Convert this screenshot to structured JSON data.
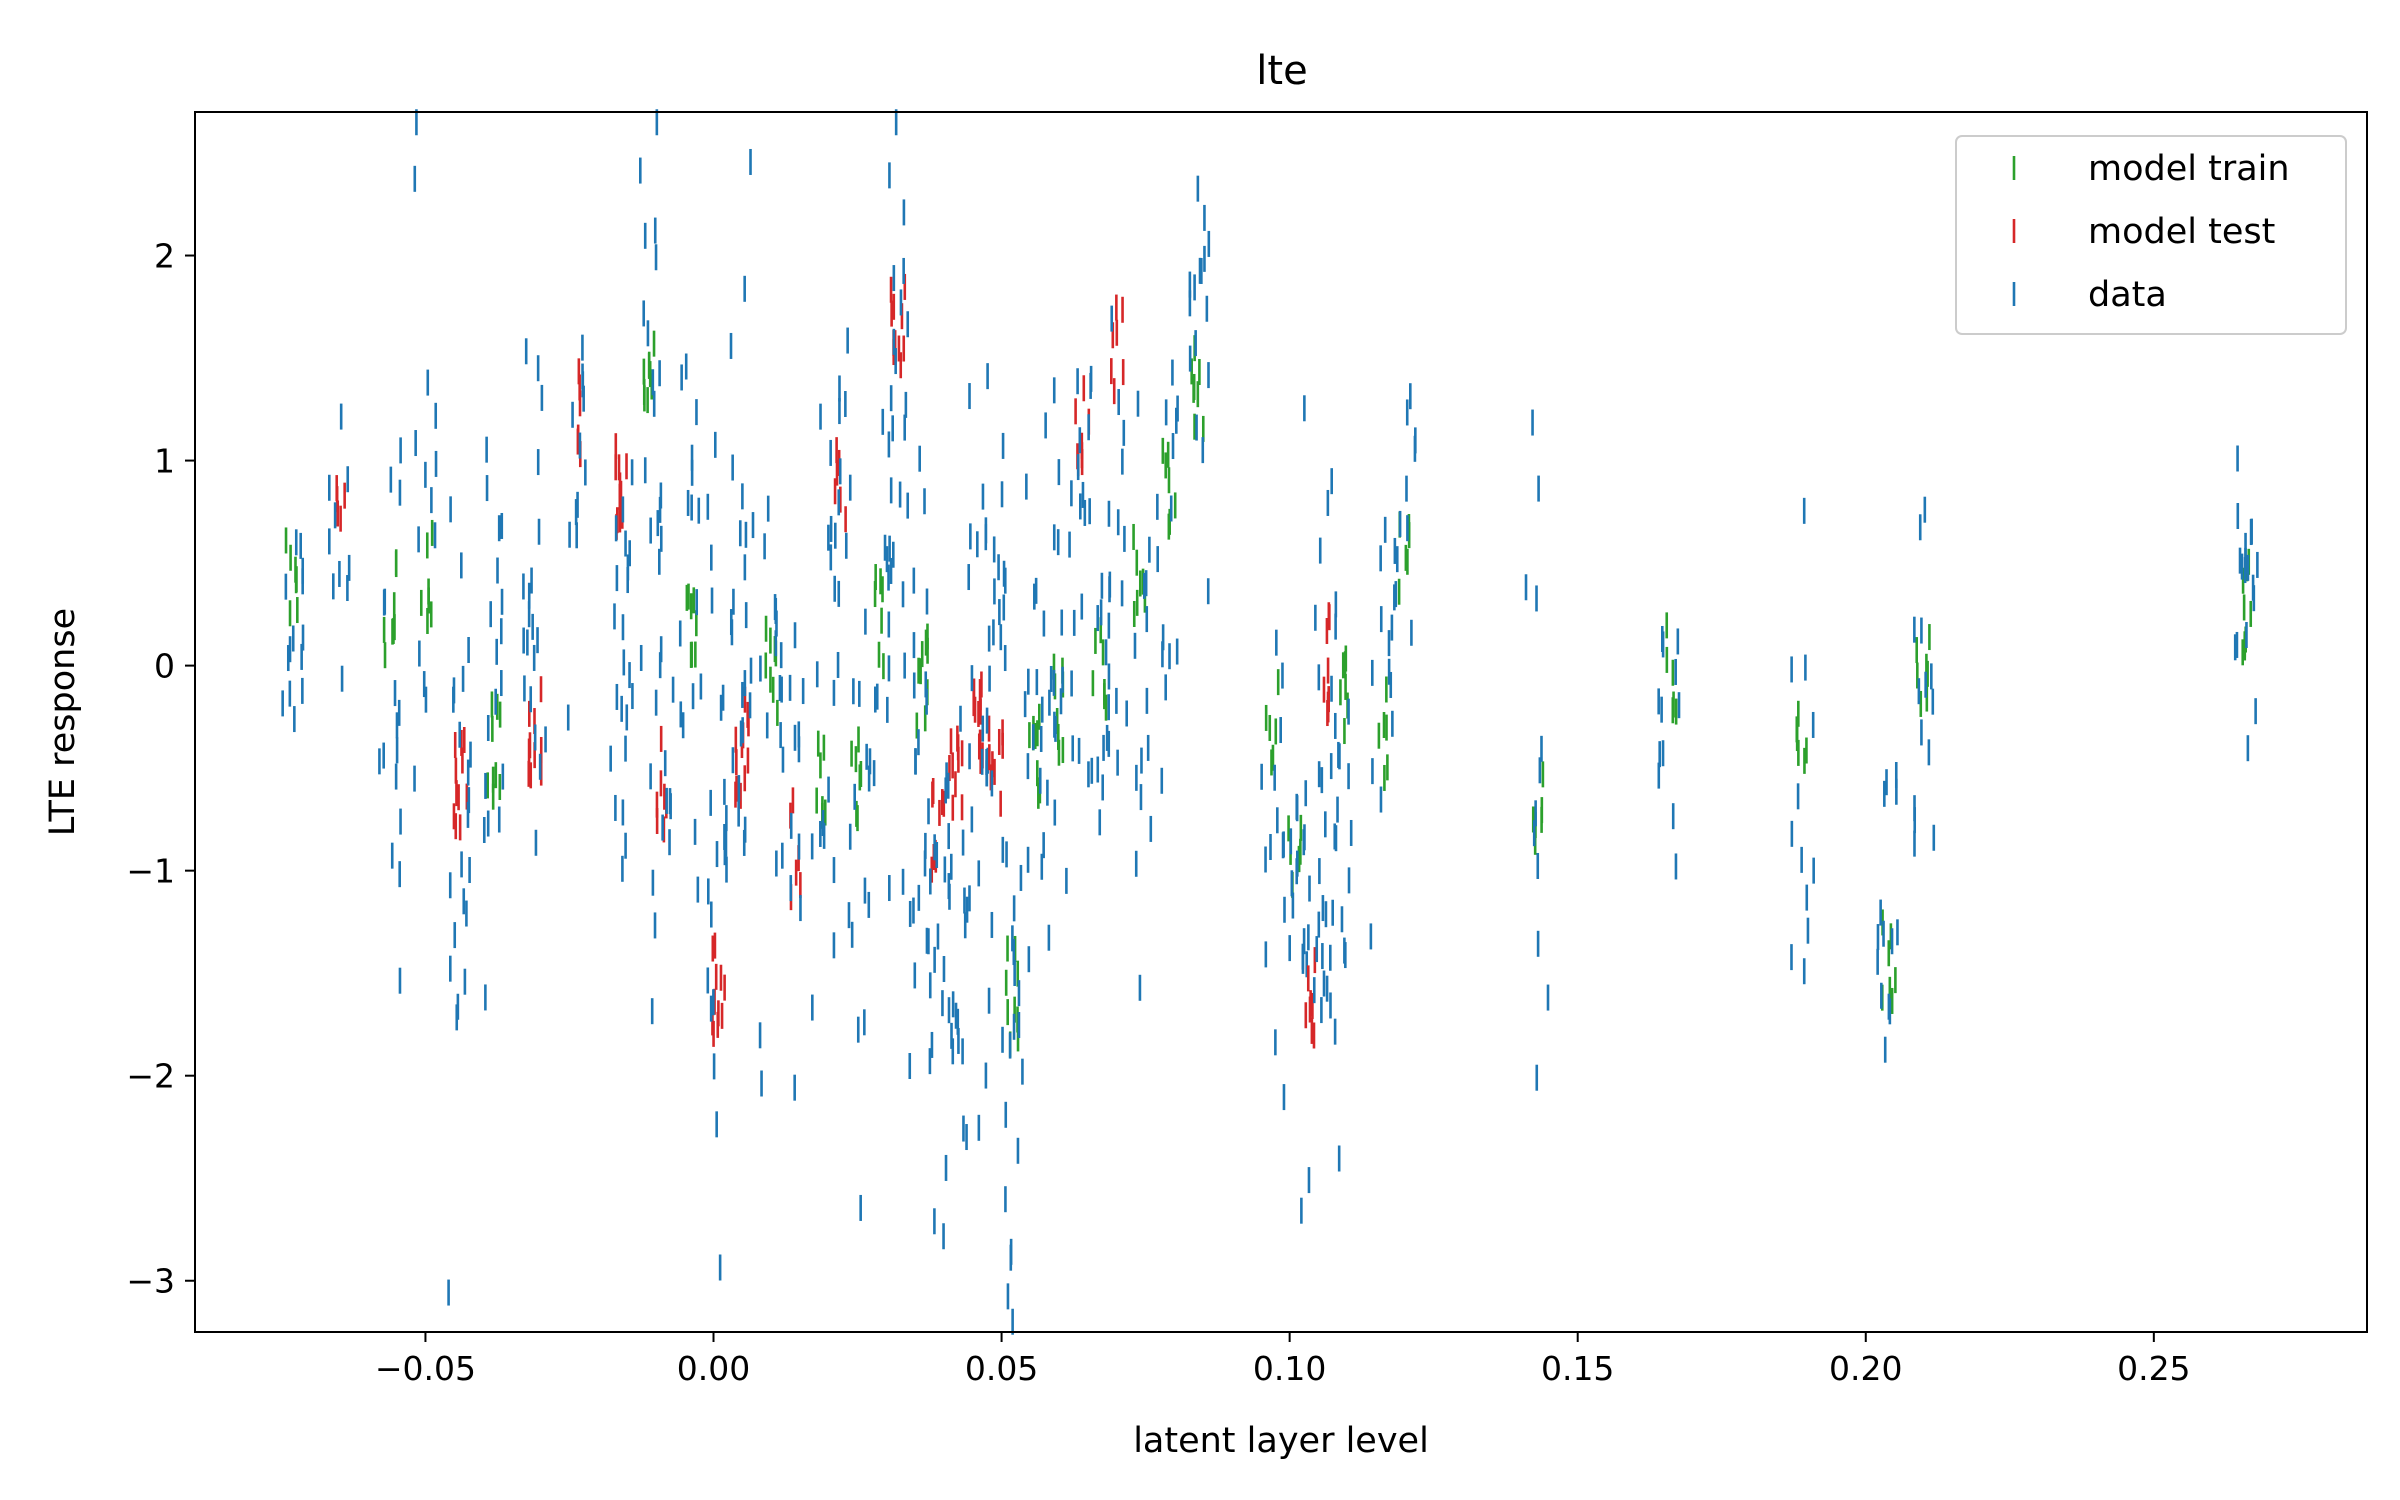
{
  "chart_data": {
    "type": "scatter",
    "title": "lte",
    "xlabel": "latent layer level",
    "ylabel": "LTE response",
    "xlim": [
      -0.09,
      0.287
    ],
    "ylim": [
      -3.25,
      2.7
    ],
    "xticks": [
      -0.05,
      0.0,
      0.05,
      0.1,
      0.15,
      0.2,
      0.25
    ],
    "xtick_labels": [
      "−0.05",
      "0.00",
      "0.05",
      "0.10",
      "0.15",
      "0.20",
      "0.25"
    ],
    "yticks": [
      -3,
      -2,
      -1,
      0,
      1,
      2
    ],
    "ytick_labels": [
      "−3",
      "−2",
      "−1",
      "0",
      "1",
      "2"
    ],
    "legend_position": "top-right",
    "grid": false,
    "marker": "vertical-dash",
    "series": [
      {
        "name": "model train",
        "color": "#2ca02c"
      },
      {
        "name": "model test",
        "color": "#d62728"
      },
      {
        "name": "data",
        "color": "#1f77b4"
      }
    ],
    "clusters": [
      {
        "x": -0.073,
        "n": 14,
        "data_mean": 0.2,
        "data_sd": 0.45,
        "model_mean": 0.4,
        "model": "train"
      },
      {
        "x": -0.065,
        "n": 10,
        "data_mean": 0.6,
        "data_sd": 0.35,
        "model_mean": 0.85,
        "model": "test"
      },
      {
        "x": -0.056,
        "n": 16,
        "data_mean": -0.3,
        "data_sd": 0.6,
        "model_mean": 0.3,
        "model": "train"
      },
      {
        "x": -0.05,
        "n": 14,
        "data_mean": 0.8,
        "data_sd": 0.9,
        "model_mean": 0.4,
        "model": "train"
      },
      {
        "x": -0.044,
        "n": 22,
        "data_mean": -0.6,
        "data_sd": 0.9,
        "model_mean": -0.6,
        "model": "test"
      },
      {
        "x": -0.038,
        "n": 18,
        "data_mean": -0.3,
        "data_sd": 0.7,
        "model_mean": -0.4,
        "model": "train"
      },
      {
        "x": -0.031,
        "n": 20,
        "data_mean": 0.1,
        "data_sd": 0.7,
        "model_mean": -0.3,
        "model": "test"
      },
      {
        "x": -0.024,
        "n": 12,
        "data_mean": 1.2,
        "data_sd": 0.6,
        "model_mean": 1.2,
        "model": "test"
      },
      {
        "x": -0.016,
        "n": 22,
        "data_mean": 0.0,
        "data_sd": 0.6,
        "model_mean": 0.9,
        "model": "test"
      },
      {
        "x": -0.011,
        "n": 18,
        "data_mean": 0.8,
        "data_sd": 0.9,
        "model_mean": 1.4,
        "model": "train"
      },
      {
        "x": -0.009,
        "n": 14,
        "data_mean": -0.5,
        "data_sd": 0.5,
        "model_mean": -0.6,
        "model": "test"
      },
      {
        "x": -0.004,
        "n": 16,
        "data_mean": 0.5,
        "data_sd": 0.7,
        "model_mean": 0.1,
        "model": "train"
      },
      {
        "x": 0.001,
        "n": 22,
        "data_mean": -0.5,
        "data_sd": 0.9,
        "model_mean": -1.6,
        "model": "test"
      },
      {
        "x": 0.005,
        "n": 24,
        "data_mean": 0.2,
        "data_sd": 0.8,
        "model_mean": -0.4,
        "model": "test"
      },
      {
        "x": 0.01,
        "n": 16,
        "data_mean": -0.3,
        "data_sd": 0.9,
        "model_mean": 0.0,
        "model": "train"
      },
      {
        "x": 0.014,
        "n": 12,
        "data_mean": -0.6,
        "data_sd": 0.6,
        "model_mean": -0.9,
        "model": "test"
      },
      {
        "x": 0.019,
        "n": 14,
        "data_mean": -0.3,
        "data_sd": 0.8,
        "model_mean": -0.5,
        "model": "train"
      },
      {
        "x": 0.022,
        "n": 12,
        "data_mean": 0.6,
        "data_sd": 0.6,
        "model_mean": 0.9,
        "model": "test"
      },
      {
        "x": 0.025,
        "n": 14,
        "data_mean": -0.5,
        "data_sd": 0.8,
        "model_mean": -0.6,
        "model": "train"
      },
      {
        "x": 0.029,
        "n": 14,
        "data_mean": 0.3,
        "data_sd": 0.7,
        "model_mean": 0.2,
        "model": "train"
      },
      {
        "x": 0.032,
        "n": 22,
        "data_mean": 0.9,
        "data_sd": 1.0,
        "model_mean": 1.6,
        "model": "test"
      },
      {
        "x": 0.036,
        "n": 18,
        "data_mean": -0.5,
        "data_sd": 0.8,
        "model_mean": -0.1,
        "model": "train"
      },
      {
        "x": 0.039,
        "n": 18,
        "data_mean": -1.2,
        "data_sd": 0.8,
        "model_mean": -0.8,
        "model": "test"
      },
      {
        "x": 0.042,
        "n": 20,
        "data_mean": -1.5,
        "data_sd": 0.8,
        "model_mean": -0.6,
        "model": "test"
      },
      {
        "x": 0.046,
        "n": 24,
        "data_mean": -0.2,
        "data_sd": 0.9,
        "model_mean": -0.3,
        "model": "test"
      },
      {
        "x": 0.049,
        "n": 18,
        "data_mean": 0.0,
        "data_sd": 0.7,
        "model_mean": -0.5,
        "model": "test"
      },
      {
        "x": 0.052,
        "n": 18,
        "data_mean": -1.9,
        "data_sd": 0.8,
        "model_mean": -1.6,
        "model": "train"
      },
      {
        "x": 0.056,
        "n": 18,
        "data_mean": -0.3,
        "data_sd": 0.8,
        "model_mean": -0.4,
        "model": "train"
      },
      {
        "x": 0.06,
        "n": 16,
        "data_mean": 0.0,
        "data_sd": 0.8,
        "model_mean": -0.2,
        "model": "train"
      },
      {
        "x": 0.064,
        "n": 16,
        "data_mean": 0.6,
        "data_sd": 0.7,
        "model_mean": 1.2,
        "model": "test"
      },
      {
        "x": 0.067,
        "n": 14,
        "data_mean": -0.2,
        "data_sd": 0.6,
        "model_mean": 0.0,
        "model": "train"
      },
      {
        "x": 0.07,
        "n": 14,
        "data_mean": 0.3,
        "data_sd": 0.8,
        "model_mean": 1.5,
        "model": "test"
      },
      {
        "x": 0.074,
        "n": 14,
        "data_mean": 0.0,
        "data_sd": 0.6,
        "model_mean": 0.5,
        "model": "train"
      },
      {
        "x": 0.079,
        "n": 14,
        "data_mean": 0.5,
        "data_sd": 0.5,
        "model_mean": 0.8,
        "model": "train"
      },
      {
        "x": 0.084,
        "n": 16,
        "data_mean": 1.6,
        "data_sd": 0.5,
        "model_mean": 1.3,
        "model": "train"
      },
      {
        "x": 0.097,
        "n": 12,
        "data_mean": -0.6,
        "data_sd": 0.6,
        "model_mean": -0.3,
        "model": "train"
      },
      {
        "x": 0.101,
        "n": 14,
        "data_mean": -1.2,
        "data_sd": 0.4,
        "model_mean": -1.0,
        "model": "train"
      },
      {
        "x": 0.104,
        "n": 16,
        "data_mean": -0.6,
        "data_sd": 0.9,
        "model_mean": -1.6,
        "model": "test"
      },
      {
        "x": 0.107,
        "n": 18,
        "data_mean": -0.4,
        "data_sd": 0.9,
        "model_mean": 0.0,
        "model": "test"
      },
      {
        "x": 0.109,
        "n": 14,
        "data_mean": -0.6,
        "data_sd": 0.6,
        "model_mean": -0.1,
        "model": "train"
      },
      {
        "x": 0.116,
        "n": 12,
        "data_mean": -0.3,
        "data_sd": 0.4,
        "model_mean": -0.3,
        "model": "train"
      },
      {
        "x": 0.12,
        "n": 12,
        "data_mean": 0.6,
        "data_sd": 0.4,
        "model_mean": 0.6,
        "model": "train"
      },
      {
        "x": 0.143,
        "n": 12,
        "data_mean": -0.3,
        "data_sd": 0.8,
        "model_mean": -0.7,
        "model": "train"
      },
      {
        "x": 0.166,
        "n": 12,
        "data_mean": -0.2,
        "data_sd": 0.7,
        "model_mean": 0.0,
        "model": "train"
      },
      {
        "x": 0.189,
        "n": 12,
        "data_mean": -0.6,
        "data_sd": 0.8,
        "model_mean": -0.3,
        "model": "train"
      },
      {
        "x": 0.204,
        "n": 14,
        "data_mean": -1.5,
        "data_sd": 0.6,
        "model_mean": -1.4,
        "model": "train"
      },
      {
        "x": 0.21,
        "n": 14,
        "data_mean": -0.2,
        "data_sd": 0.5,
        "model_mean": -0.1,
        "model": "train"
      },
      {
        "x": 0.266,
        "n": 18,
        "data_mean": 0.5,
        "data_sd": 0.5,
        "model_mean": 0.3,
        "model": "train"
      }
    ]
  }
}
